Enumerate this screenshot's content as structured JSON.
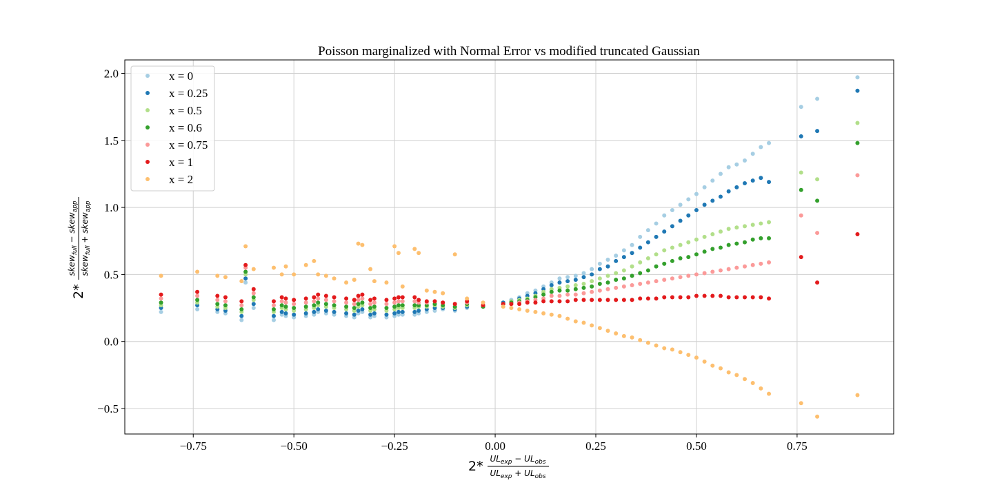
{
  "chart_data": {
    "type": "scatter",
    "title": "Poisson marginalized with Normal Error vs modified truncated Gaussian",
    "xlabel": {
      "prefix": "2*",
      "numerator": [
        "UL",
        "exp",
        " − UL",
        "obs"
      ],
      "denominator": [
        "UL",
        "exp",
        " + UL",
        "obs"
      ]
    },
    "ylabel": {
      "prefix": "2*",
      "numerator": [
        "skew",
        "full",
        " − skew",
        "app"
      ],
      "denominator": [
        "skew",
        "full",
        " + skew",
        "app"
      ]
    },
    "xlim": [
      -0.92,
      0.99
    ],
    "ylim": [
      -0.69,
      2.1
    ],
    "xticks": [
      -0.75,
      -0.5,
      -0.25,
      0.0,
      0.25,
      0.5,
      0.75
    ],
    "xtick_labels": [
      "−0.75",
      "−0.50",
      "−0.25",
      "0.00",
      "0.25",
      "0.50",
      "0.75"
    ],
    "yticks": [
      -0.5,
      0.0,
      0.5,
      1.0,
      1.5,
      2.0
    ],
    "ytick_labels": [
      "−0.5",
      "0.0",
      "0.5",
      "1.0",
      "1.5",
      "2.0"
    ],
    "grid": true,
    "legend_position": "upper-left",
    "x": [
      -0.83,
      -0.74,
      -0.69,
      -0.67,
      -0.63,
      -0.62,
      -0.6,
      -0.55,
      -0.53,
      -0.52,
      -0.5,
      -0.47,
      -0.45,
      -0.44,
      -0.42,
      -0.4,
      -0.37,
      -0.35,
      -0.34,
      -0.33,
      -0.31,
      -0.3,
      -0.27,
      -0.25,
      -0.24,
      -0.23,
      -0.2,
      -0.19,
      -0.17,
      -0.15,
      -0.13,
      -0.1,
      -0.07,
      -0.03,
      0.02,
      0.04,
      0.06,
      0.08,
      0.1,
      0.12,
      0.14,
      0.16,
      0.18,
      0.2,
      0.22,
      0.24,
      0.26,
      0.28,
      0.3,
      0.32,
      0.34,
      0.36,
      0.38,
      0.4,
      0.42,
      0.44,
      0.46,
      0.48,
      0.5,
      0.52,
      0.54,
      0.56,
      0.58,
      0.6,
      0.62,
      0.64,
      0.66,
      0.68,
      0.76,
      0.8,
      0.9
    ],
    "series": [
      {
        "name": "x = 0",
        "color": "#a6cee3",
        "y": [
          0.22,
          0.24,
          0.22,
          0.21,
          0.16,
          0.44,
          0.25,
          0.16,
          0.2,
          0.19,
          0.18,
          0.19,
          0.2,
          0.22,
          0.21,
          0.2,
          0.19,
          0.18,
          0.21,
          0.22,
          0.18,
          0.19,
          0.18,
          0.19,
          0.2,
          0.2,
          0.2,
          0.21,
          0.22,
          0.23,
          0.24,
          0.23,
          0.25,
          0.26,
          0.29,
          0.31,
          0.33,
          0.36,
          0.38,
          0.41,
          0.44,
          0.47,
          0.48,
          0.49,
          0.51,
          0.54,
          0.58,
          0.61,
          0.64,
          0.68,
          0.72,
          0.78,
          0.83,
          0.88,
          0.94,
          0.98,
          1.02,
          1.06,
          1.1,
          1.15,
          1.2,
          1.25,
          1.3,
          1.32,
          1.35,
          1.4,
          1.45,
          1.48,
          1.75,
          1.81,
          1.97
        ]
      },
      {
        "name": "x = 0.25",
        "color": "#1f78b4",
        "y": [
          0.25,
          0.27,
          0.24,
          0.23,
          0.19,
          0.47,
          0.28,
          0.19,
          0.22,
          0.21,
          0.2,
          0.21,
          0.22,
          0.24,
          0.23,
          0.22,
          0.21,
          0.2,
          0.23,
          0.24,
          0.2,
          0.21,
          0.2,
          0.21,
          0.22,
          0.22,
          0.22,
          0.23,
          0.24,
          0.25,
          0.25,
          0.24,
          0.26,
          0.26,
          0.29,
          0.3,
          0.32,
          0.34,
          0.36,
          0.39,
          0.42,
          0.44,
          0.45,
          0.46,
          0.48,
          0.5,
          0.54,
          0.56,
          0.6,
          0.63,
          0.66,
          0.7,
          0.74,
          0.78,
          0.82,
          0.86,
          0.9,
          0.94,
          0.98,
          1.02,
          1.05,
          1.08,
          1.12,
          1.15,
          1.18,
          1.2,
          1.22,
          1.19,
          1.53,
          1.57,
          1.87
        ]
      },
      {
        "name": "x = 0.5",
        "color": "#b2df8a",
        "y": [
          0.27,
          0.29,
          0.26,
          0.25,
          0.22,
          0.5,
          0.31,
          0.22,
          0.25,
          0.24,
          0.23,
          0.24,
          0.25,
          0.27,
          0.26,
          0.25,
          0.24,
          0.23,
          0.26,
          0.27,
          0.23,
          0.24,
          0.23,
          0.24,
          0.25,
          0.25,
          0.25,
          0.26,
          0.26,
          0.27,
          0.26,
          0.25,
          0.27,
          0.26,
          0.28,
          0.3,
          0.31,
          0.32,
          0.34,
          0.37,
          0.39,
          0.4,
          0.41,
          0.42,
          0.43,
          0.45,
          0.47,
          0.49,
          0.51,
          0.53,
          0.56,
          0.59,
          0.62,
          0.65,
          0.68,
          0.7,
          0.72,
          0.74,
          0.76,
          0.78,
          0.8,
          0.82,
          0.84,
          0.85,
          0.86,
          0.87,
          0.88,
          0.89,
          1.26,
          1.21,
          1.63
        ]
      },
      {
        "name": "x = 0.6",
        "color": "#33a02c",
        "y": [
          0.29,
          0.31,
          0.28,
          0.27,
          0.24,
          0.52,
          0.33,
          0.24,
          0.27,
          0.26,
          0.25,
          0.26,
          0.27,
          0.29,
          0.28,
          0.27,
          0.26,
          0.25,
          0.28,
          0.29,
          0.25,
          0.26,
          0.25,
          0.26,
          0.27,
          0.27,
          0.27,
          0.27,
          0.27,
          0.28,
          0.27,
          0.26,
          0.28,
          0.26,
          0.28,
          0.29,
          0.3,
          0.31,
          0.33,
          0.35,
          0.37,
          0.38,
          0.38,
          0.39,
          0.4,
          0.41,
          0.43,
          0.44,
          0.46,
          0.47,
          0.49,
          0.51,
          0.53,
          0.56,
          0.58,
          0.6,
          0.62,
          0.63,
          0.65,
          0.67,
          0.69,
          0.7,
          0.72,
          0.73,
          0.74,
          0.76,
          0.77,
          0.77,
          1.13,
          1.05,
          1.48
        ]
      },
      {
        "name": "x = 0.75",
        "color": "#fb9a99",
        "y": [
          0.32,
          0.34,
          0.31,
          0.3,
          0.27,
          0.55,
          0.36,
          0.27,
          0.3,
          0.29,
          0.28,
          0.29,
          0.3,
          0.32,
          0.31,
          0.3,
          0.29,
          0.28,
          0.31,
          0.32,
          0.28,
          0.29,
          0.28,
          0.29,
          0.3,
          0.3,
          0.3,
          0.29,
          0.29,
          0.3,
          0.29,
          0.28,
          0.29,
          0.27,
          0.28,
          0.28,
          0.29,
          0.3,
          0.31,
          0.32,
          0.34,
          0.34,
          0.35,
          0.35,
          0.36,
          0.37,
          0.38,
          0.39,
          0.4,
          0.41,
          0.42,
          0.43,
          0.44,
          0.45,
          0.46,
          0.47,
          0.48,
          0.49,
          0.5,
          0.51,
          0.52,
          0.53,
          0.54,
          0.55,
          0.56,
          0.57,
          0.58,
          0.59,
          0.94,
          0.81,
          1.24
        ]
      },
      {
        "name": "x = 1",
        "color": "#e31a1c",
        "y": [
          0.35,
          0.37,
          0.34,
          0.33,
          0.3,
          0.57,
          0.39,
          0.3,
          0.33,
          0.32,
          0.31,
          0.32,
          0.33,
          0.35,
          0.34,
          0.33,
          0.32,
          0.31,
          0.34,
          0.35,
          0.31,
          0.32,
          0.31,
          0.32,
          0.33,
          0.33,
          0.33,
          0.31,
          0.3,
          0.3,
          0.29,
          0.28,
          0.3,
          0.27,
          0.28,
          0.28,
          0.28,
          0.29,
          0.29,
          0.3,
          0.3,
          0.3,
          0.3,
          0.31,
          0.31,
          0.31,
          0.31,
          0.31,
          0.31,
          0.31,
          0.31,
          0.32,
          0.32,
          0.32,
          0.33,
          0.33,
          0.33,
          0.33,
          0.34,
          0.34,
          0.34,
          0.34,
          0.33,
          0.33,
          0.33,
          0.33,
          0.33,
          0.32,
          0.63,
          0.44,
          0.8
        ]
      },
      {
        "name": "x = 2",
        "color": "#fdbf6f",
        "y": [
          0.49,
          0.52,
          0.49,
          0.48,
          0.45,
          0.71,
          0.54,
          0.55,
          0.5,
          0.56,
          0.5,
          0.57,
          0.6,
          0.5,
          0.49,
          0.47,
          0.44,
          0.46,
          0.73,
          0.72,
          0.54,
          0.45,
          0.44,
          0.71,
          0.66,
          0.41,
          0.69,
          0.66,
          0.38,
          0.37,
          0.36,
          0.65,
          0.32,
          0.29,
          0.26,
          0.25,
          0.24,
          0.23,
          0.22,
          0.21,
          0.2,
          0.19,
          0.17,
          0.15,
          0.14,
          0.12,
          0.1,
          0.08,
          0.06,
          0.04,
          0.03,
          0.01,
          -0.01,
          -0.03,
          -0.05,
          -0.06,
          -0.08,
          -0.1,
          -0.12,
          -0.15,
          -0.18,
          -0.2,
          -0.23,
          -0.25,
          -0.28,
          -0.31,
          -0.35,
          -0.39,
          -0.46,
          -0.56,
          -0.4
        ]
      }
    ]
  }
}
